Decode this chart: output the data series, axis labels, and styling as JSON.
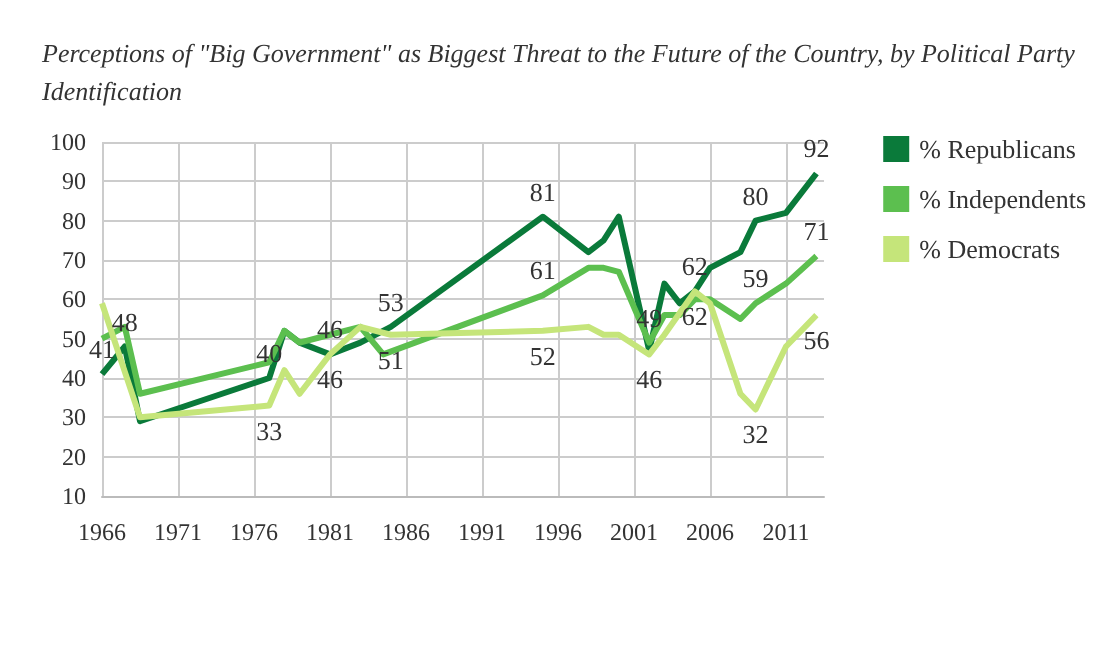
{
  "chart_data": {
    "type": "line",
    "title": "Perceptions of \"Big Government\" as Biggest Threat to the Future of the Country, by Political Party Identification",
    "xlim": [
      1966,
      2013.5
    ],
    "xticks": [
      1966,
      1971,
      1976,
      1981,
      1986,
      1991,
      1996,
      2001,
      2006,
      2011
    ],
    "ylim": [
      10,
      100
    ],
    "yticks": [
      10,
      20,
      30,
      40,
      50,
      60,
      70,
      80,
      90,
      100
    ],
    "grid": true,
    "legend": "right",
    "marker": "none",
    "line_style": "solid",
    "series": [
      {
        "name": "% Republicans",
        "color": "#0a7a3a",
        "x": [
          1966,
          1967.5,
          1968.5,
          1977,
          1978,
          1979,
          1981,
          1983,
          1985,
          1995,
          1998,
          1999,
          2000,
          2002,
          2003,
          2004,
          2005,
          2006,
          2008,
          2009,
          2011,
          2013
        ],
        "values": [
          41,
          48,
          29,
          40,
          52,
          49,
          46,
          49,
          53,
          81,
          72,
          75,
          81,
          47,
          64,
          59,
          62,
          68,
          72,
          80,
          82,
          92
        ],
        "value_labels": [
          "41",
          "48",
          null,
          "40",
          null,
          null,
          "46",
          null,
          "53",
          "81",
          null,
          null,
          null,
          null,
          null,
          null,
          "62",
          null,
          null,
          "80",
          null,
          "92"
        ]
      },
      {
        "name": "% Independents",
        "color": "#5cbf4f",
        "x": [
          1966,
          1967.5,
          1968.5,
          1977,
          1978,
          1979,
          1981,
          1983,
          1984.5,
          1995,
          1998,
          1999,
          2000,
          2002,
          2003,
          2004,
          2005,
          2006,
          2008,
          2009,
          2011,
          2013
        ],
        "values": [
          50,
          53,
          36,
          44,
          52,
          49,
          51,
          53,
          46,
          61,
          68,
          68,
          67,
          49,
          56,
          56,
          60,
          60,
          55,
          59,
          64,
          71
        ],
        "value_labels": [
          null,
          null,
          null,
          null,
          null,
          null,
          null,
          null,
          null,
          "61",
          null,
          null,
          null,
          "49",
          null,
          null,
          null,
          null,
          null,
          "59",
          null,
          "71"
        ]
      },
      {
        "name": "% Democrats",
        "color": "#c5e57a",
        "x": [
          1966,
          1968.5,
          1977,
          1978,
          1979,
          1981,
          1983,
          1985,
          1995,
          1998,
          1999,
          2000,
          2002,
          2003,
          2005,
          2006,
          2008,
          2009,
          2011,
          2013
        ],
        "values": [
          59,
          30,
          33,
          42,
          36,
          46,
          53,
          51,
          52,
          53,
          51,
          51,
          46,
          51,
          62,
          59,
          36,
          32,
          48,
          56
        ],
        "value_labels": [
          null,
          null,
          "33",
          null,
          null,
          "46",
          null,
          "51",
          "52",
          null,
          null,
          null,
          "46",
          null,
          "62",
          null,
          null,
          "32",
          null,
          "56"
        ]
      }
    ]
  }
}
